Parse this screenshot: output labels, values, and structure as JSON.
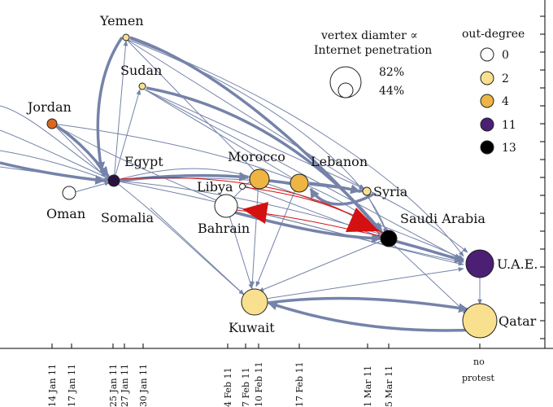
{
  "legend_size": {
    "title_line1": "vertex diamter ∝",
    "title_line2": "Internet penetration",
    "big_value": "82%",
    "small_value": "44%"
  },
  "legend_degree": {
    "title": "out-degree",
    "items": [
      {
        "value": "0",
        "color": "#ffffff"
      },
      {
        "value": "2",
        "color": "#f8e08e"
      },
      {
        "value": "4",
        "color": "#eeb444"
      },
      {
        "value": "11",
        "color": "#4a1f74"
      },
      {
        "value": "13",
        "color": "#000000"
      }
    ]
  },
  "colors": {
    "edge": "#7583a9",
    "edge_highlight": "#d41010",
    "node_stroke": "#222222",
    "jordan": "#d9681c",
    "egypt": "#2a1240"
  },
  "nodes": [
    {
      "id": "yemen",
      "label": "Yemen",
      "fill": "#f8e08e",
      "internet_penetration_relative": "small"
    },
    {
      "id": "sudan",
      "label": "Sudan",
      "fill": "#f8e08e",
      "internet_penetration_relative": "small"
    },
    {
      "id": "jordan",
      "label": "Jordan",
      "fill": "#d9681c",
      "internet_penetration_relative": "small"
    },
    {
      "id": "egypt",
      "label": "Egypt",
      "fill": "#2a1240",
      "internet_penetration_relative": "small"
    },
    {
      "id": "oman",
      "label": "Oman",
      "fill": "#ffffff",
      "internet_penetration_relative": "small"
    },
    {
      "id": "somalia",
      "label": "Somalia",
      "fill": "#ffffff",
      "internet_penetration_relative": "small"
    },
    {
      "id": "libya",
      "label": "Libya",
      "fill": "#ffffff",
      "internet_penetration_relative": "small"
    },
    {
      "id": "bahrain",
      "label": "Bahrain",
      "fill": "#ffffff",
      "internet_penetration_relative": "large"
    },
    {
      "id": "morocco",
      "label": "Morocco",
      "fill": "#eeb444",
      "internet_penetration_relative": "medium"
    },
    {
      "id": "lebanon",
      "label": "Lebanon",
      "fill": "#eeb444",
      "internet_penetration_relative": "medium"
    },
    {
      "id": "syria",
      "label": "Syria",
      "fill": "#f8e08e",
      "internet_penetration_relative": "small"
    },
    {
      "id": "saudi",
      "label": "Saudi Arabia",
      "fill": "#000000",
      "internet_penetration_relative": "medium"
    },
    {
      "id": "uae",
      "label": "U.A.E.",
      "fill": "#4a1f74",
      "internet_penetration_relative": "large"
    },
    {
      "id": "kuwait",
      "label": "Kuwait",
      "fill": "#f8e08e",
      "internet_penetration_relative": "large"
    },
    {
      "id": "qatar",
      "label": "Qatar",
      "fill": "#f8e08e",
      "internet_penetration_relative": "large"
    }
  ],
  "axis": {
    "dates": [
      "14 Jan 11",
      "17 Jan 11",
      "25 Jan 11",
      "27 Jan 11",
      "30 Jan 11",
      "4 Feb 11",
      "7 Feb 11",
      "10 Feb 11",
      "17 Feb 11",
      "1 Mar 11",
      "5 Mar 11"
    ],
    "no_protest_line1": "no",
    "no_protest_line2": "protest"
  }
}
